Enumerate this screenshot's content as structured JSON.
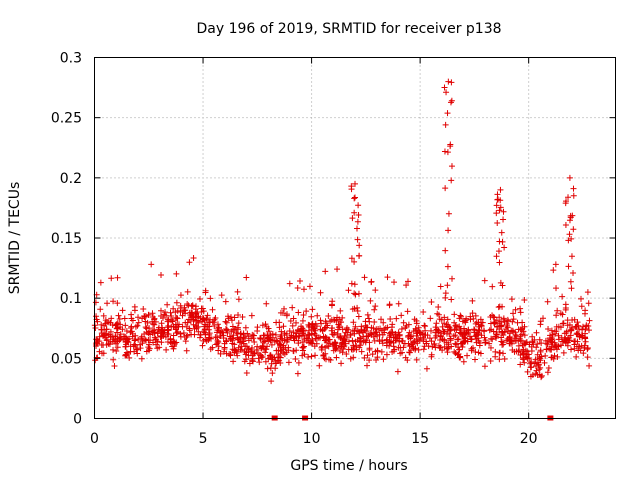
{
  "chart_data": {
    "type": "scatter",
    "title": "Day 196 of 2019, SRMTID for receiver p138",
    "xlabel": "GPS time / hours",
    "ylabel": "SRMTID / TECUs",
    "xlim": [
      0,
      24
    ],
    "ylim": [
      0,
      0.3
    ],
    "xticks": [
      0,
      5,
      10,
      15,
      20
    ],
    "xtick_labels": [
      "0",
      "5",
      "10",
      "15",
      "20"
    ],
    "yticks": [
      0,
      0.05,
      0.1,
      0.15,
      0.2,
      0.25,
      0.3
    ],
    "ytick_labels": [
      "0",
      "0.05",
      "0.1",
      "0.15",
      "0.2",
      "0.25",
      "0.3"
    ],
    "grid": true,
    "marker": "plus",
    "color": "#e00000",
    "data_span_hours": [
      0,
      22.8
    ],
    "typical_range": [
      0.02,
      0.12
    ],
    "notable_peaks": [
      {
        "x": 12.0,
        "y": 0.195
      },
      {
        "x": 16.3,
        "y": 0.28
      },
      {
        "x": 18.7,
        "y": 0.19
      },
      {
        "x": 21.9,
        "y": 0.2
      }
    ],
    "baseline_markers_x": [
      8.3,
      9.7,
      21.0
    ]
  }
}
